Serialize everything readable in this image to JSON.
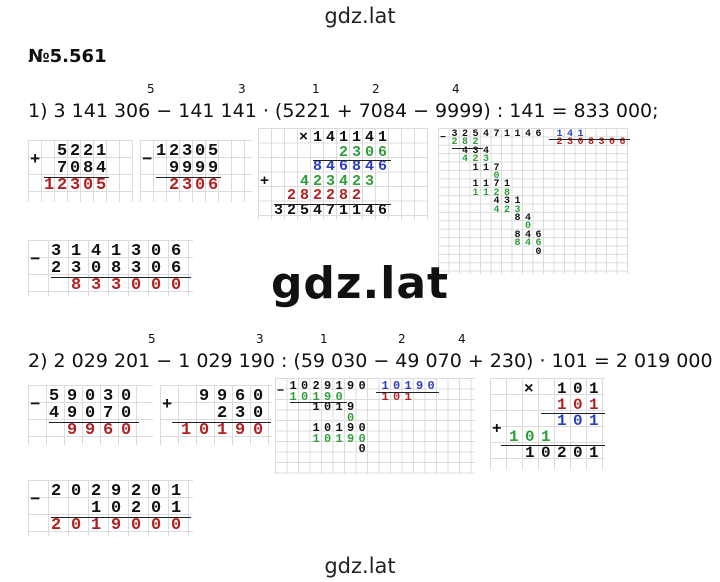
{
  "header": {
    "watermark": "gdz.lat",
    "title": "№5.561"
  },
  "watermark_center": "gdz.lat",
  "footer": {
    "watermark": "gdz.lat"
  },
  "problems": [
    {
      "order": [
        "5",
        "3",
        "1",
        "2",
        "4"
      ],
      "expression": "1) 3 141 306 − 141 141 · (5221 + 7084 − 9999) : 141 = 833 000;",
      "computations": [
        {
          "ops": [
            "+"
          ],
          "rows": [
            "5221",
            "7084",
            "12305"
          ]
        },
        {
          "ops": [
            "−"
          ],
          "rows": [
            "12305",
            "9999",
            "2306"
          ]
        },
        {
          "ops": [
            "×",
            "+"
          ],
          "rows": [
            "141141",
            "2306",
            "846846",
            "423423",
            "282282",
            "325471146"
          ]
        },
        {
          "ops": [
            "−"
          ],
          "rows": [
            "325471146",
            "141",
            "2308306",
            "282",
            "434",
            "423",
            "117",
            "0",
            "1171",
            "1128",
            "431",
            "423",
            "84",
            "0",
            "846",
            "846",
            "0"
          ]
        },
        {
          "ops": [
            "−"
          ],
          "rows": [
            "3141306",
            "2308306",
            "833000"
          ]
        }
      ]
    },
    {
      "order": [
        "5",
        "3",
        "1",
        "2",
        "4"
      ],
      "expression": "2) 2 029 201 − 1 029 190 : (59 030 − 49 070 + 230) · 101 = 2 019 000",
      "computations": [
        {
          "ops": [
            "−"
          ],
          "rows": [
            "59030",
            "49070",
            "9960"
          ]
        },
        {
          "ops": [
            "+"
          ],
          "rows": [
            "9960",
            "230",
            "10190"
          ]
        },
        {
          "ops": [
            "−"
          ],
          "rows": [
            "1029190",
            "10190",
            "101",
            "10190",
            "1019",
            "0",
            "10190",
            "10190",
            "0"
          ]
        },
        {
          "ops": [
            "×",
            "+"
          ],
          "rows": [
            "101",
            "101",
            "101",
            "101",
            "10201"
          ]
        },
        {
          "ops": [
            "−"
          ],
          "rows": [
            "2029201",
            "10201",
            "2019000"
          ]
        }
      ]
    }
  ]
}
